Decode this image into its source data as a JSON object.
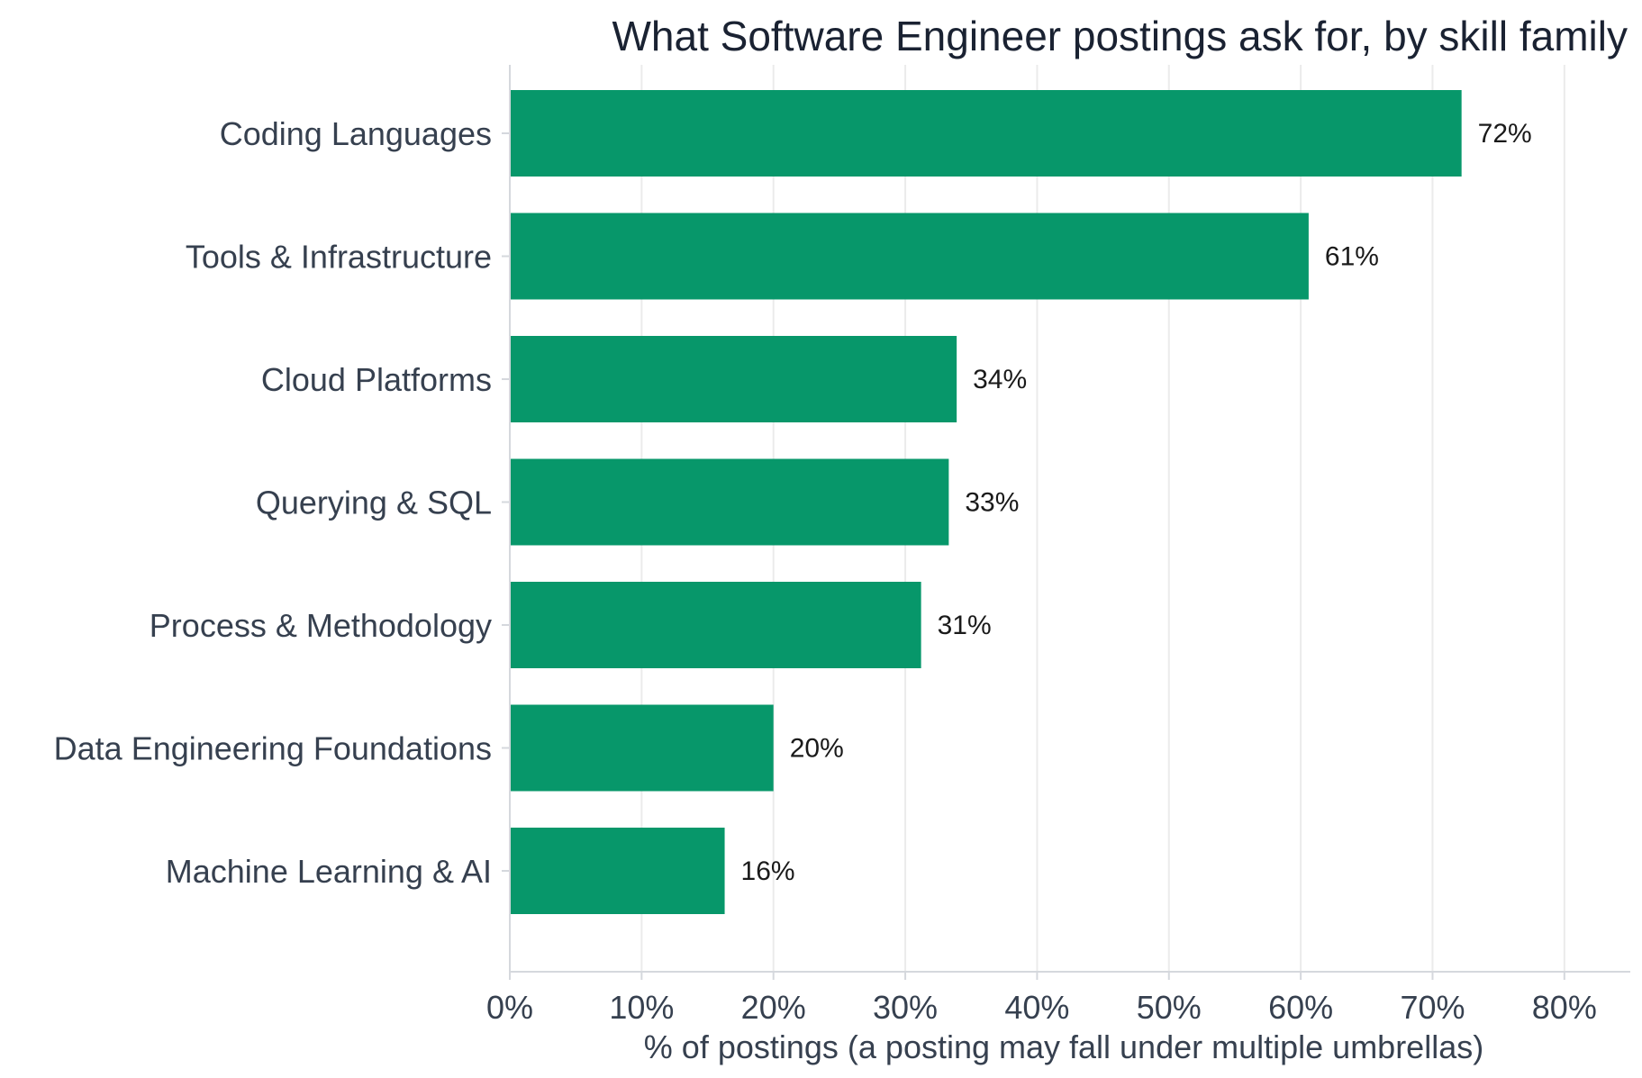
{
  "chart_data": {
    "type": "bar",
    "orientation": "horizontal",
    "title": "What Software Engineer postings ask for, by skill family",
    "xlabel": "% of postings (a posting may fall under multiple umbrellas)",
    "ylabel": "",
    "categories": [
      "Coding Languages",
      "Tools & Infrastructure",
      "Cloud Platforms",
      "Querying & SQL",
      "Process & Methodology",
      "Data Engineering Foundations",
      "Machine Learning & AI"
    ],
    "values": [
      72.2,
      60.6,
      33.9,
      33.3,
      31.2,
      20.0,
      16.3
    ],
    "data_labels": [
      "72%",
      "61%",
      "34%",
      "33%",
      "31%",
      "20%",
      "16%"
    ],
    "xlim": [
      0,
      85
    ],
    "xticks": [
      0,
      10,
      20,
      30,
      40,
      50,
      60,
      70,
      80
    ],
    "xtick_labels": [
      "0%",
      "10%",
      "20%",
      "30%",
      "40%",
      "50%",
      "60%",
      "70%",
      "80%"
    ],
    "grid": "vertical",
    "legend": "none",
    "bar_color": "#07976a",
    "grid_color": "#ebebeb",
    "axis_color": "#d5d8dd"
  }
}
